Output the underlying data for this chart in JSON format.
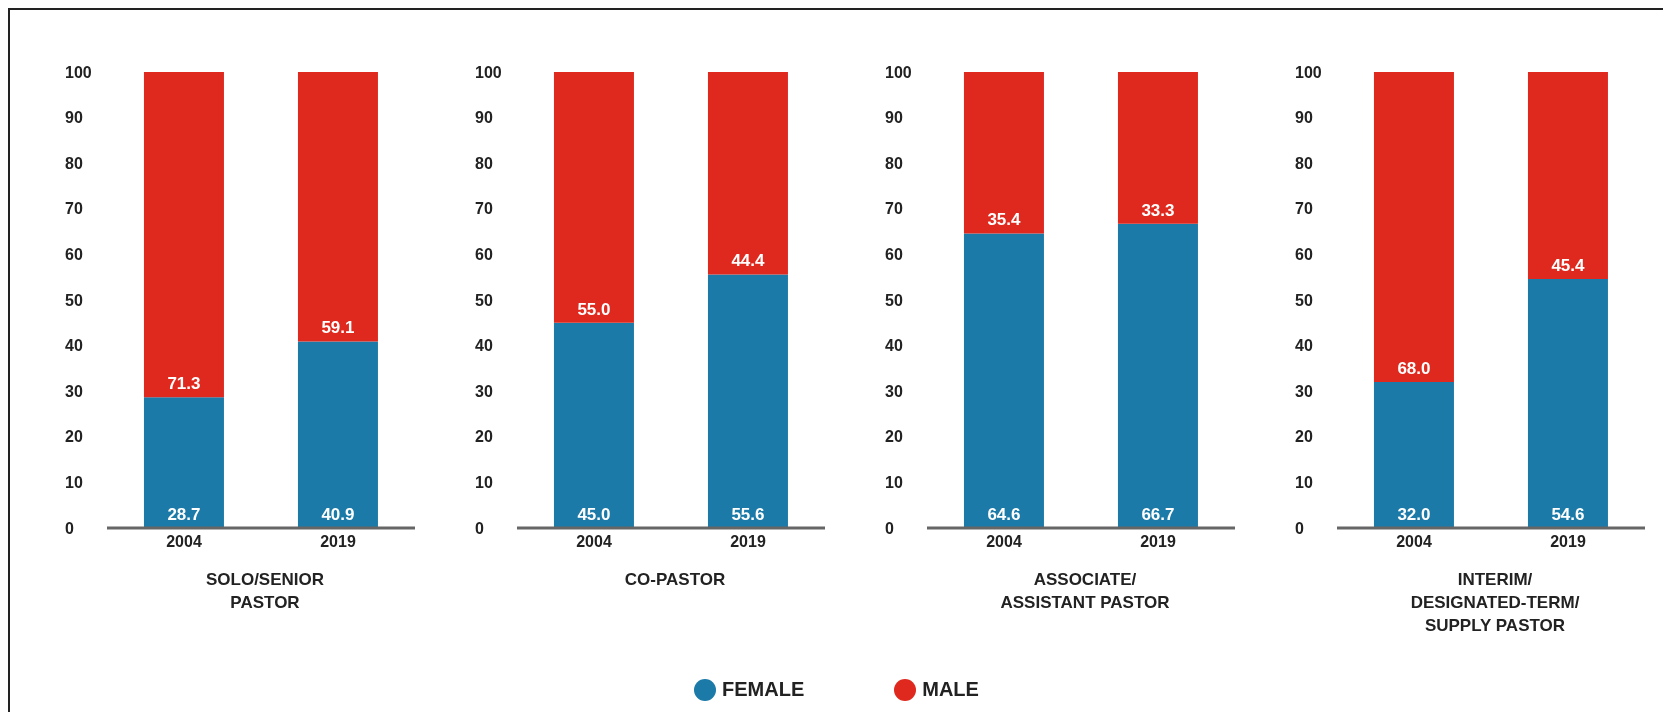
{
  "chart_data": [
    {
      "type": "bar",
      "stacked": true,
      "xlabel": "SOLO/SENIOR PASTOR",
      "categories": [
        "2004",
        "2019"
      ],
      "ylim": [
        0,
        100
      ],
      "yticks": [
        0,
        10,
        20,
        30,
        40,
        50,
        60,
        70,
        80,
        90,
        100
      ],
      "legend": "bottom",
      "series": [
        {
          "name": "FEMALE",
          "color": "#1b7aa8",
          "values": [
            28.7,
            40.9
          ],
          "value_labels": [
            "28.7",
            "40.9"
          ]
        },
        {
          "name": "MALE",
          "color": "#e0291e",
          "values": [
            71.3,
            59.1
          ],
          "value_labels": [
            "71.3",
            "59.1"
          ]
        }
      ]
    },
    {
      "type": "bar",
      "stacked": true,
      "xlabel": "CO-PASTOR",
      "categories": [
        "2004",
        "2019"
      ],
      "ylim": [
        0,
        100
      ],
      "yticks": [
        0,
        10,
        20,
        30,
        40,
        50,
        60,
        70,
        80,
        90,
        100
      ],
      "series": [
        {
          "color": "#1b7aa8",
          "values": [
            45.0,
            55.6
          ],
          "value_labels": [
            "45.0",
            "55.6"
          ]
        },
        {
          "color": "#e0291e",
          "values": [
            55.0,
            44.4
          ],
          "value_labels": [
            "55.0",
            "44.4"
          ]
        }
      ]
    },
    {
      "type": "bar",
      "stacked": true,
      "xlabel": "ASSOCIATE/ASSISTANT PASTOR",
      "categories": [
        "2004",
        "2019"
      ],
      "ylim": [
        0,
        100
      ],
      "yticks": [
        0,
        10,
        20,
        30,
        40,
        50,
        60,
        70,
        80,
        90,
        100
      ],
      "series": [
        {
          "color": "#1b7aa8",
          "values": [
            64.6,
            66.7
          ],
          "value_labels": [
            "64.6",
            "66.7"
          ]
        },
        {
          "color": "#e0291e",
          "values": [
            35.4,
            33.3
          ],
          "value_labels": [
            "35.4",
            "33.3"
          ]
        }
      ]
    },
    {
      "type": "bar",
      "stacked": true,
      "xlabel": "INTERIM/DESIGNATED-TERM/SUPPLY PASTOR",
      "categories": [
        "2004",
        "2019"
      ],
      "ylim": [
        0,
        100
      ],
      "yticks": [
        0,
        10,
        20,
        30,
        40,
        50,
        60,
        70,
        80,
        90,
        100
      ],
      "series": [
        {
          "color": "#1b7aa8",
          "values": [
            32.0,
            54.6
          ],
          "value_labels": [
            "32.0",
            "54.6"
          ]
        },
        {
          "color": "#e0291e",
          "values": [
            68.0,
            45.4
          ],
          "value_labels": [
            "68.0",
            "45.4"
          ]
        }
      ]
    }
  ]
}
